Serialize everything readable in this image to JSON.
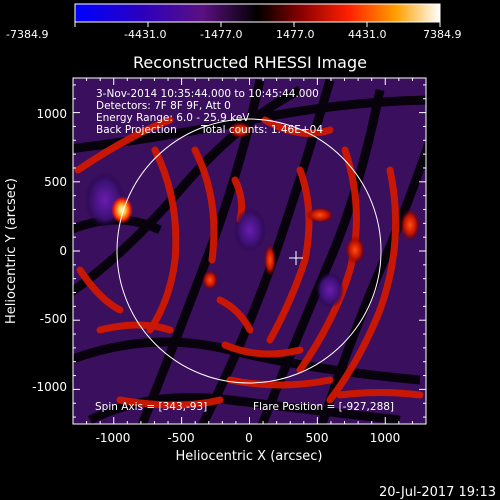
{
  "colorbar": {
    "tick_labels": [
      "-7384.9",
      "-4431.0",
      "-1477.0",
      "1477.0",
      "4431.0",
      "7384.9"
    ]
  },
  "plot": {
    "title": "Reconstructed RHESSI Image",
    "xlabel": "Heliocentric X (arcsec)",
    "ylabel": "Heliocentric Y (arcsec)",
    "x_ticks": [
      "-1000",
      "-500",
      "0",
      "500",
      "1000"
    ],
    "y_ticks": [
      "1000",
      "500",
      "0",
      "-500",
      "-1000"
    ],
    "x_range": [
      -1300,
      1300
    ],
    "y_range": [
      -1250,
      1250
    ]
  },
  "info": {
    "line1": "3-Nov-2014 10:35:44.000 to 10:45:44.000",
    "line2": "Detectors: 7F 8F 9F, Att 0",
    "line3": "Energy Range: 6.0 - 25.9 keV",
    "line4_left": "Back Projection",
    "line4_right": "Total counts: 1.46E+04",
    "spin_axis": "Spin Axis = [343,-93]",
    "flare_position": "Flare Position = [-927,288]"
  },
  "footer": {
    "date": "20-Jul-2017 19:13"
  },
  "colors": {
    "background": "#000000",
    "axes": "#ffffff",
    "limb_circle": "#ffffff"
  }
}
